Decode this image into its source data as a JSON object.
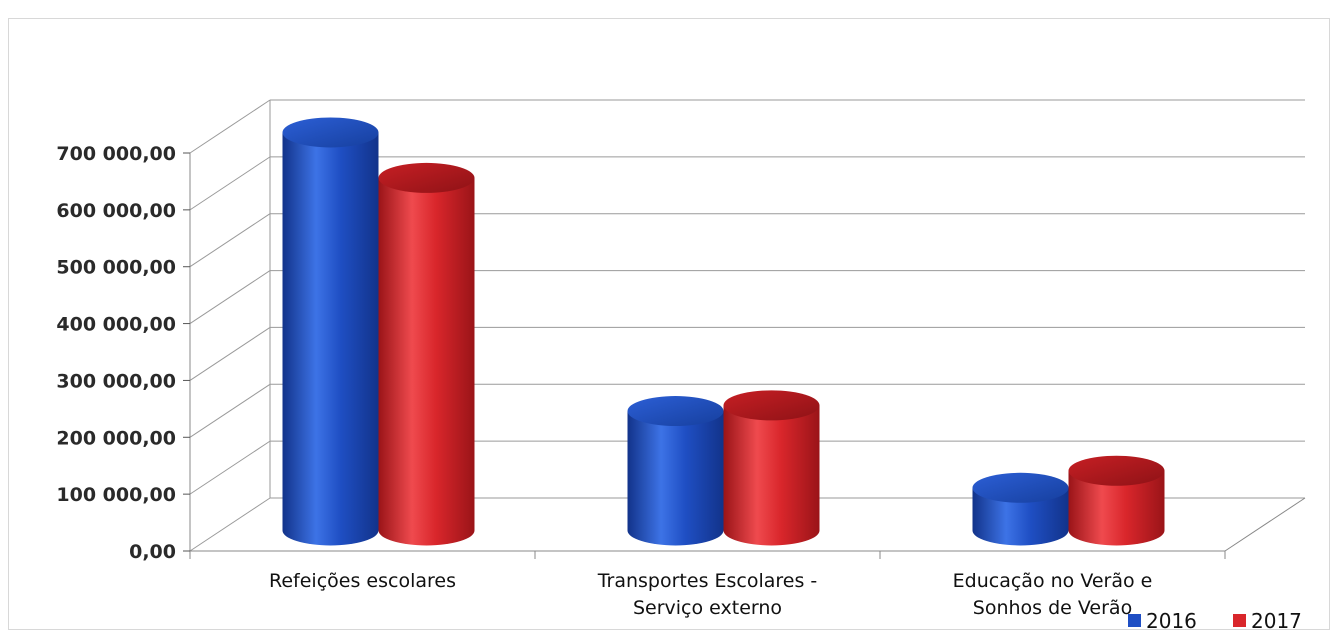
{
  "chart_data": {
    "type": "bar",
    "style": "3d-cylinder",
    "categories": [
      "Refeições escolares",
      "Transportes Escolares - Serviço externo",
      "Educação no Verão e Sonhos de Verão"
    ],
    "category_lines": [
      [
        "Refeições escolares"
      ],
      [
        "Transportes Escolares -",
        "Serviço externo"
      ],
      [
        "Educação no Verão e",
        "Sonhos de Verão"
      ]
    ],
    "series": [
      {
        "name": "2016",
        "color": "#1f4fc4",
        "values": [
          700000,
          210000,
          75000
        ]
      },
      {
        "name": "2017",
        "color": "#d9262b",
        "values": [
          620000,
          220000,
          105000
        ]
      }
    ],
    "ylim": [
      0,
      700000
    ],
    "yticks": [
      0,
      100000,
      200000,
      300000,
      400000,
      500000,
      600000,
      700000
    ],
    "ytick_labels": [
      "0,00",
      "100 000,00",
      "200 000,00",
      "300 000,00",
      "400 000,00",
      "500 000,00",
      "600 000,00",
      "700 000,00"
    ],
    "grid": true,
    "legend_position": "bottom-right",
    "title": "",
    "xlabel": "",
    "ylabel": ""
  }
}
